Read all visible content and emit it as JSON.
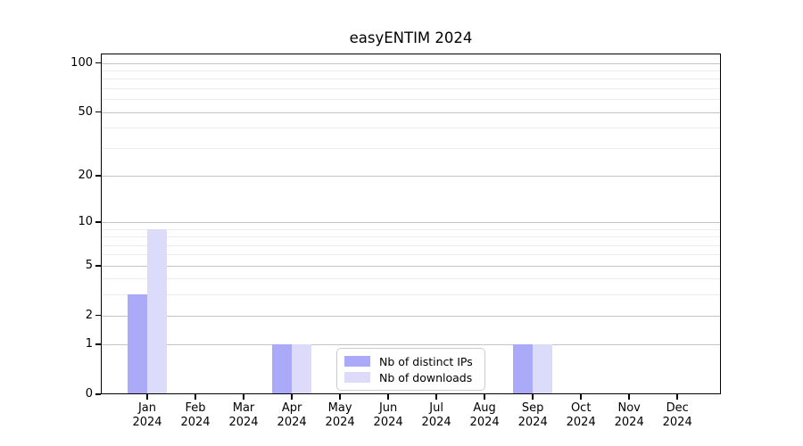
{
  "title": "easyENTIM 2024",
  "chart_data": {
    "type": "bar",
    "title": "easyENTIM 2024",
    "categories": [
      "Jan",
      "Feb",
      "Mar",
      "Apr",
      "May",
      "Jun",
      "Jul",
      "Aug",
      "Sep",
      "Oct",
      "Nov",
      "Dec"
    ],
    "category_year": "2024",
    "series": [
      {
        "name": "Nb of distinct IPs",
        "color": "#aaaaf8",
        "values": [
          3,
          0,
          0,
          1,
          0,
          0,
          0,
          0,
          1,
          0,
          0,
          0
        ]
      },
      {
        "name": "Nb of downloads",
        "color": "#dcdcfa",
        "values": [
          9,
          0,
          0,
          1,
          0,
          0,
          0,
          0,
          1,
          0,
          0,
          0
        ]
      }
    ],
    "yscale": "log1p",
    "ylim": [
      0,
      114
    ],
    "y_major_ticks": [
      0,
      1,
      2,
      5,
      10,
      20,
      50,
      100
    ],
    "y_minor_ticks": [
      3,
      4,
      6,
      7,
      8,
      9,
      30,
      40,
      60,
      70,
      80,
      90
    ],
    "grid": "horizontal",
    "legend_position": "lower-center-inside",
    "colors": {
      "background": "#ffffff",
      "axis": "#000000",
      "grid_major": "#c4c4c4",
      "grid_minor": "#ececec",
      "legend_border": "#cccccc"
    }
  }
}
